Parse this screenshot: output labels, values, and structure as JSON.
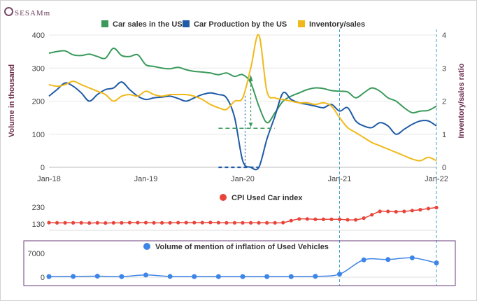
{
  "brand": "SESAMm",
  "chart_data": [
    {
      "type": "line",
      "x_tick_labels": [
        "Jan-18",
        "Jan-19",
        "Jan-20",
        "Jan-21",
        "Jan-22"
      ],
      "ylabel": "Volume in thousand",
      "y2label": "Inventory/sales ratio",
      "ylim": [
        0,
        400
      ],
      "y2lim": [
        0,
        4
      ],
      "yticks": [
        0,
        100,
        200,
        300,
        400
      ],
      "y2ticks": [
        0,
        1,
        2,
        3,
        4
      ],
      "legend_position": "top",
      "x_unit": "months since Jan-18",
      "series": [
        {
          "name": "Car sales in the US",
          "color": "#3a9a5b",
          "axis": "left",
          "x": [
            0,
            1,
            2,
            3,
            4,
            5,
            6,
            7,
            8,
            9,
            10,
            11,
            12,
            13,
            14,
            15,
            16,
            17,
            18,
            19,
            20,
            21,
            22,
            23,
            24,
            25,
            26,
            27,
            28,
            29,
            30,
            31,
            32,
            33,
            34,
            35,
            36,
            37,
            38,
            39,
            40,
            41,
            42,
            43,
            44,
            45,
            46,
            47,
            48
          ],
          "y": [
            345,
            350,
            352,
            340,
            338,
            342,
            335,
            330,
            360,
            338,
            335,
            340,
            310,
            305,
            300,
            298,
            302,
            295,
            290,
            288,
            285,
            280,
            285,
            275,
            280,
            255,
            185,
            135,
            165,
            200,
            215,
            225,
            235,
            240,
            238,
            232,
            230,
            228,
            210,
            225,
            240,
            230,
            210,
            200,
            180,
            165,
            170,
            172,
            185
          ]
        },
        {
          "name": "Car Production by the US",
          "color": "#1f5aa6",
          "axis": "left",
          "x": [
            0,
            1,
            2,
            3,
            4,
            5,
            6,
            7,
            8,
            9,
            10,
            11,
            12,
            13,
            14,
            15,
            16,
            17,
            18,
            19,
            20,
            21,
            22,
            23,
            24,
            25,
            26,
            27,
            28,
            29,
            30,
            31,
            32,
            33,
            34,
            35,
            36,
            37,
            38,
            39,
            40,
            41,
            42,
            43,
            44,
            45,
            46,
            47,
            48
          ],
          "y": [
            215,
            235,
            255,
            245,
            225,
            200,
            220,
            235,
            240,
            258,
            235,
            215,
            205,
            210,
            212,
            215,
            208,
            200,
            210,
            220,
            225,
            220,
            210,
            150,
            20,
            0,
            0,
            85,
            155,
            225,
            205,
            195,
            190,
            185,
            180,
            190,
            170,
            180,
            140,
            125,
            120,
            135,
            125,
            100,
            115,
            130,
            140,
            140,
            125
          ]
        },
        {
          "name": "Inventory/sales",
          "color": "#f0b91a",
          "axis": "right",
          "x": [
            0,
            1,
            2,
            3,
            4,
            5,
            6,
            7,
            8,
            9,
            10,
            11,
            12,
            13,
            14,
            15,
            16,
            17,
            18,
            19,
            20,
            21,
            22,
            23,
            24,
            25,
            26,
            27,
            28,
            29,
            30,
            31,
            32,
            33,
            34,
            35,
            36,
            37,
            38,
            39,
            40,
            41,
            42,
            43,
            44,
            45,
            46,
            47,
            48
          ],
          "y": [
            2.5,
            2.45,
            2.5,
            2.6,
            2.5,
            2.4,
            2.3,
            2.2,
            2.0,
            2.15,
            2.2,
            2.15,
            2.3,
            2.2,
            2.15,
            2.2,
            2.2,
            2.2,
            2.15,
            2.05,
            1.9,
            1.8,
            1.75,
            2.0,
            2.1,
            3.0,
            4.0,
            2.3,
            2.1,
            2.05,
            2.0,
            1.95,
            1.95,
            1.9,
            1.95,
            1.85,
            1.5,
            1.2,
            1.05,
            0.9,
            0.75,
            0.65,
            0.55,
            0.45,
            0.35,
            0.25,
            0.2,
            0.3,
            0.2
          ]
        }
      ]
    },
    {
      "type": "line",
      "title": "CPI Used Car index",
      "yticks": [
        130,
        230
      ],
      "series": [
        {
          "name": "CPI Used Car index",
          "color": "#e8443a",
          "x": [
            0,
            1,
            2,
            3,
            4,
            5,
            6,
            7,
            8,
            9,
            10,
            11,
            12,
            13,
            14,
            15,
            16,
            17,
            18,
            19,
            20,
            21,
            22,
            23,
            24,
            25,
            26,
            27,
            28,
            29,
            30,
            31,
            32,
            33,
            34,
            35,
            36,
            37,
            38,
            39,
            40,
            41,
            42,
            43,
            44,
            45,
            46,
            47,
            48
          ],
          "y": [
            138,
            137,
            137,
            137,
            137,
            136,
            137,
            136,
            137,
            137,
            138,
            138,
            138,
            137,
            137,
            137,
            138,
            138,
            138,
            138,
            139,
            138,
            137,
            137,
            137,
            137,
            137,
            137,
            137,
            138,
            150,
            160,
            160,
            158,
            158,
            158,
            158,
            155,
            155,
            165,
            185,
            205,
            205,
            203,
            205,
            210,
            215,
            222,
            228
          ]
        }
      ]
    },
    {
      "type": "line",
      "title": "Volume of mention of inflation of Used Vehicles",
      "yticks": [
        0,
        7000
      ],
      "series": [
        {
          "name": "Volume of mention of inflation of Used Vehicles",
          "color": "#3d85e6",
          "x": [
            0,
            3,
            6,
            9,
            12,
            15,
            18,
            21,
            24,
            27,
            30,
            33,
            36,
            39,
            42,
            45,
            48
          ],
          "y": [
            180,
            220,
            300,
            180,
            650,
            220,
            180,
            180,
            180,
            180,
            180,
            250,
            900,
            5100,
            5200,
            5700,
            4200
          ]
        }
      ]
    }
  ],
  "legend_markers": [
    "#3a9a5b",
    "#1f5aa6",
    "#f0b91a"
  ]
}
